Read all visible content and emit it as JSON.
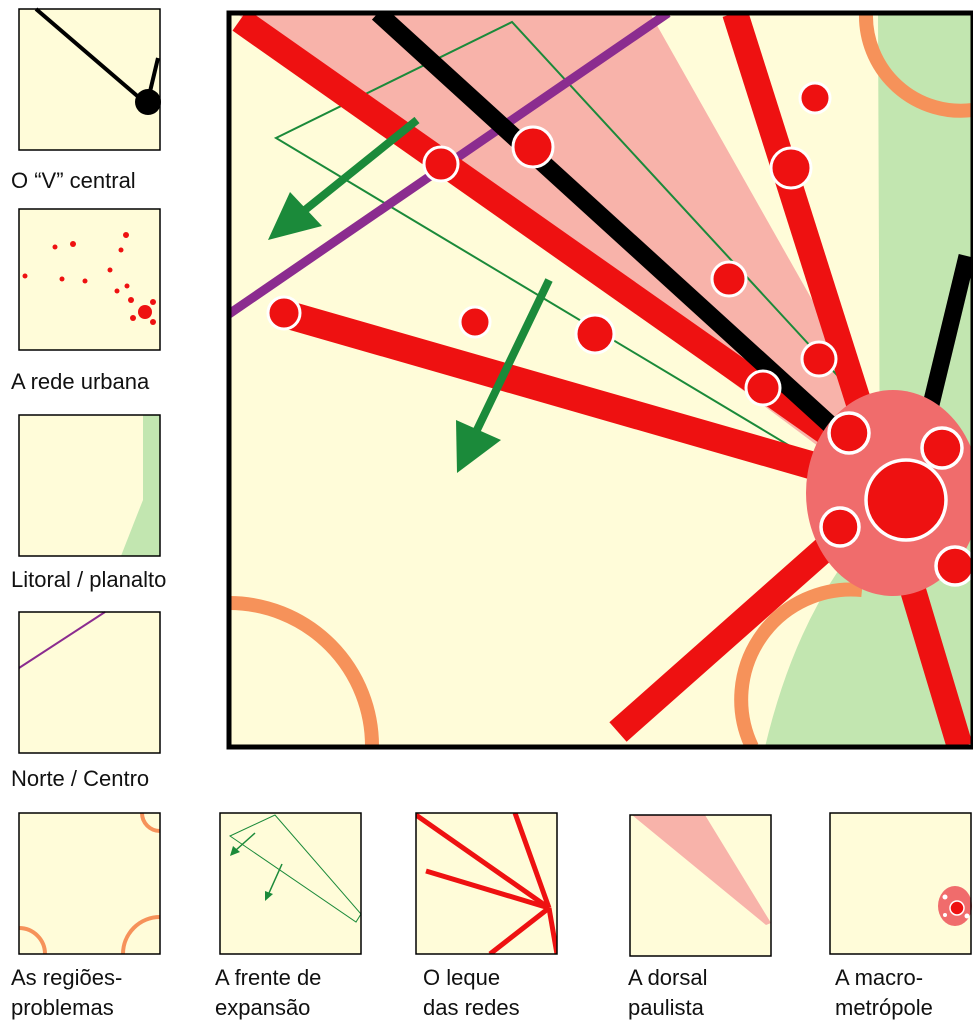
{
  "colors": {
    "background": "#fffcd9",
    "red": "#ee1111",
    "pink": "#f8b3aa",
    "macro": "#f06c6c",
    "green": "#c2e6b0",
    "orange": "#f6925a",
    "purple": "#8b2c8f",
    "arrow_green": "#1b8a3a",
    "frame": "#000000"
  },
  "legend": [
    {
      "id": "v-central",
      "lines": [
        "O “V” central"
      ]
    },
    {
      "id": "rede-urbana",
      "lines": [
        "A rede urbana"
      ]
    },
    {
      "id": "litoral",
      "lines": [
        "Litoral / planalto"
      ]
    },
    {
      "id": "norte-centro",
      "lines": [
        "Norte / Centro"
      ]
    },
    {
      "id": "regioes",
      "lines": [
        "As regiões-",
        "problemas"
      ]
    },
    {
      "id": "frente",
      "lines": [
        "A frente de",
        "expansão"
      ]
    },
    {
      "id": "leque",
      "lines": [
        "O leque",
        "das redes"
      ]
    },
    {
      "id": "dorsal",
      "lines": [
        "A dorsal",
        "paulista"
      ]
    },
    {
      "id": "macro",
      "lines": [
        "A macro-",
        "metrópole"
      ]
    }
  ]
}
